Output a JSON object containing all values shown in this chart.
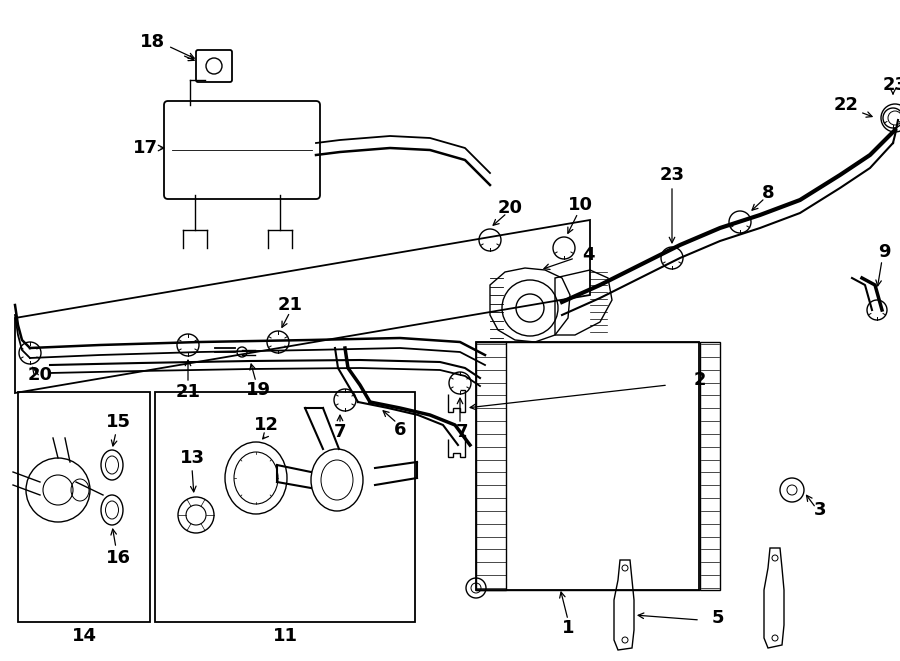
{
  "bg_color": "#ffffff",
  "lc": "#000000",
  "lw": 1.0,
  "fig_width": 9.0,
  "fig_height": 6.61,
  "dpi": 100
}
